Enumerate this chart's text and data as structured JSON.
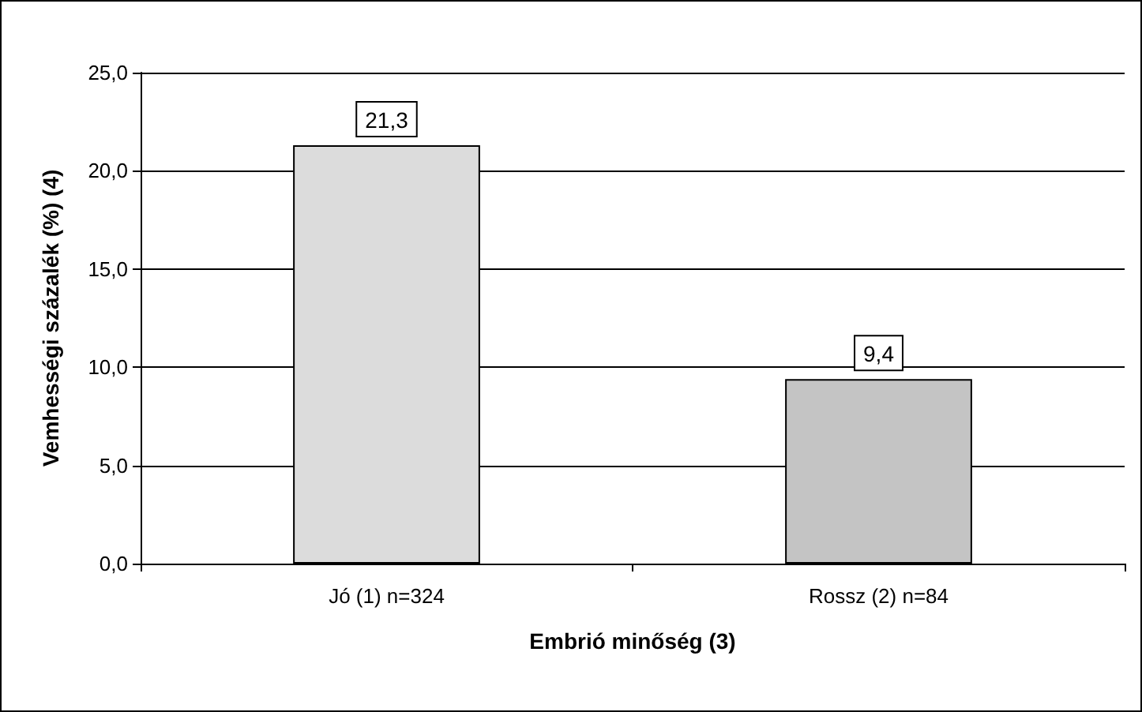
{
  "chart_data": {
    "type": "bar",
    "categories": [
      "Jó (1) n=324",
      "Rossz (2) n=84"
    ],
    "values": [
      21.3,
      9.4
    ],
    "colors": [
      "#dcdcdc",
      "#c4c4c4"
    ],
    "value_labels": [
      "21,3",
      "9,4"
    ],
    "xlabel": "Embrió minőség (3)",
    "ylabel": "Vemhességi százalék (%) (4)",
    "ylim": [
      0,
      25
    ],
    "yticks": [
      {
        "value": 0,
        "label": "0,0"
      },
      {
        "value": 5,
        "label": "5,0"
      },
      {
        "value": 10,
        "label": "10,0"
      },
      {
        "value": 15,
        "label": "15,0"
      },
      {
        "value": 20,
        "label": "20,0"
      },
      {
        "value": 25,
        "label": "25,0"
      }
    ],
    "grid": "y"
  }
}
